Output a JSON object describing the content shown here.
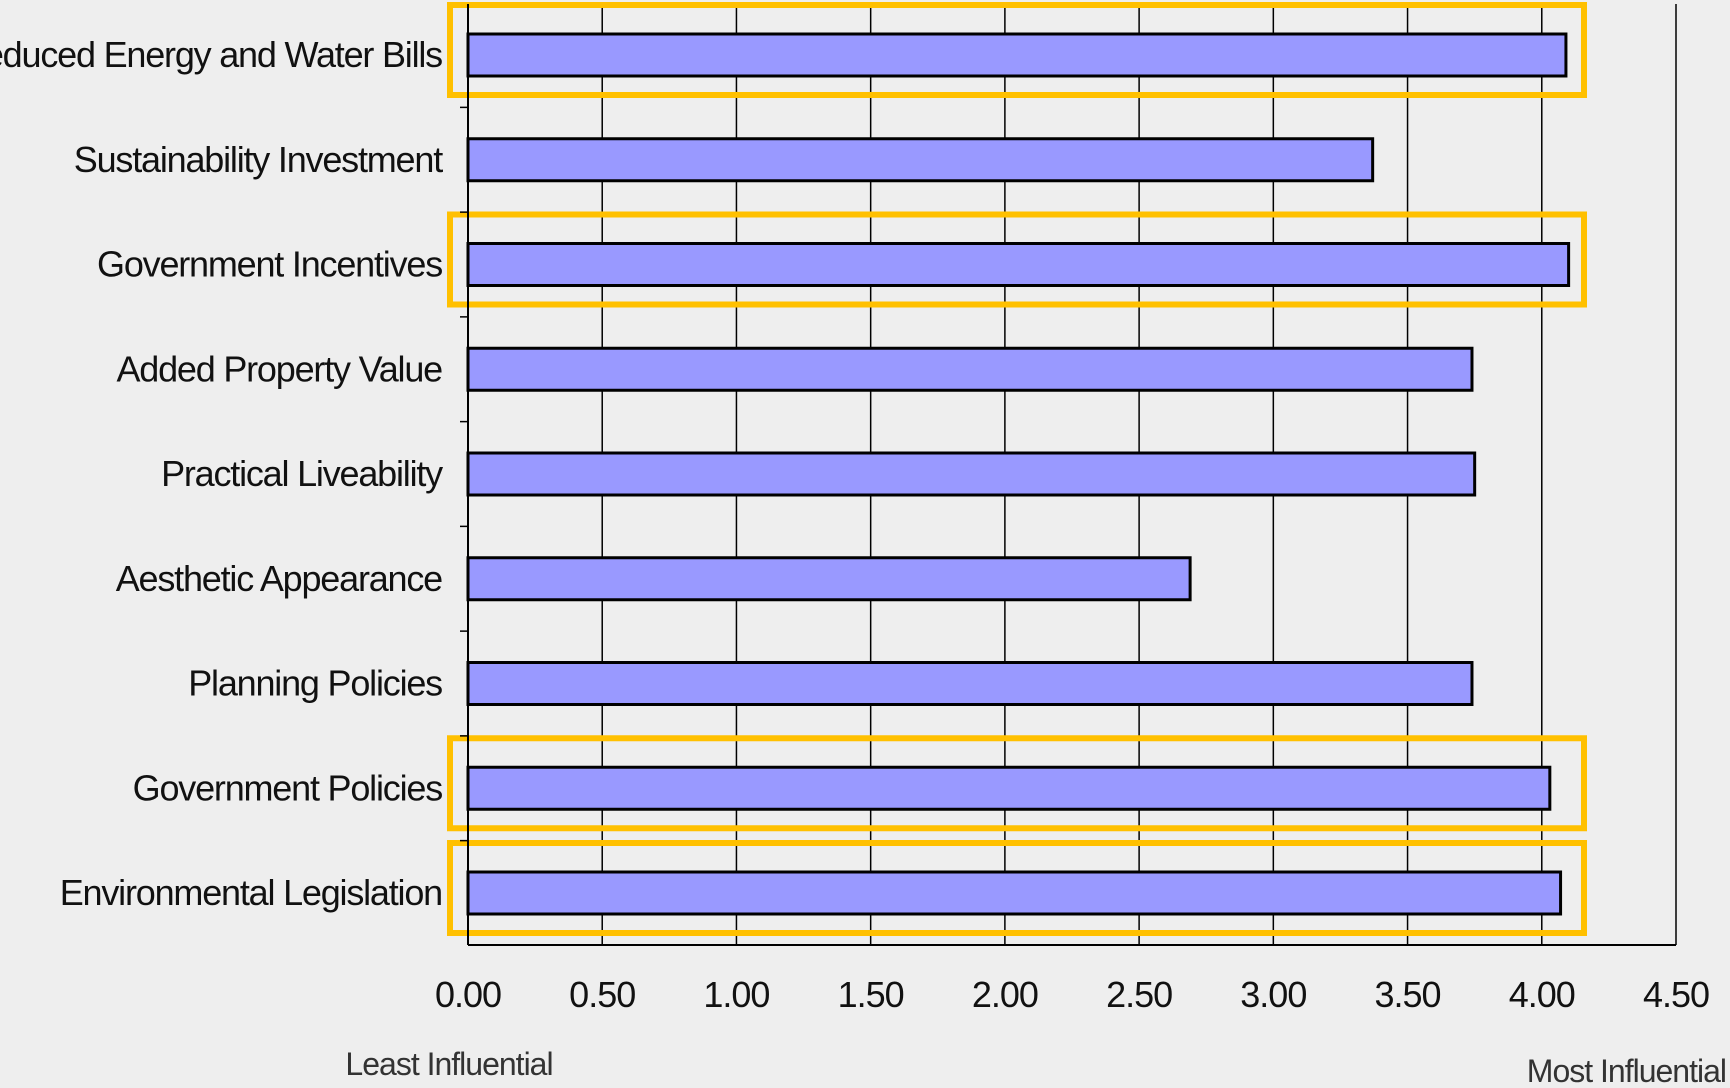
{
  "chart_data": {
    "type": "bar",
    "orientation": "horizontal",
    "categories": [
      "Reduced Energy and Water Bills",
      "Sustainability Investment",
      "Government Incentives",
      "Added Property Value",
      "Practical Liveability",
      "Aesthetic Appearance",
      "Planning Policies",
      "Government Policies",
      "Environmental Legislation"
    ],
    "values": [
      4.09,
      3.37,
      4.1,
      3.74,
      3.75,
      2.69,
      3.74,
      4.03,
      4.07
    ],
    "highlighted": [
      true,
      false,
      true,
      false,
      false,
      false,
      false,
      true,
      true
    ],
    "x_ticks": [
      "0.00",
      "0.50",
      "1.00",
      "1.50",
      "2.00",
      "2.50",
      "3.00",
      "3.50",
      "4.00",
      "4.50"
    ],
    "xlim": [
      0,
      4.5
    ],
    "x_min_label": "Least Influential",
    "x_max_label": "Most Influential",
    "grid": "vertical",
    "colors": {
      "bar_fill": "#9999ff",
      "bar_stroke": "#000000",
      "highlight": "#ffc000",
      "background": "#eeeeee"
    }
  }
}
